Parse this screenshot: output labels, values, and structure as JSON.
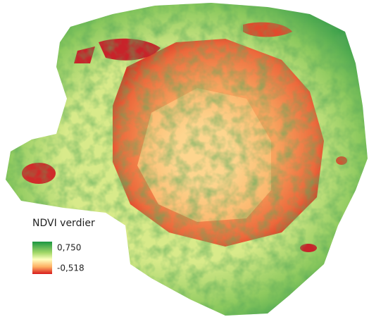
{
  "legend": {
    "title": "NDVI verdier",
    "max_label": "0,750",
    "min_label": "-0,518"
  }
}
